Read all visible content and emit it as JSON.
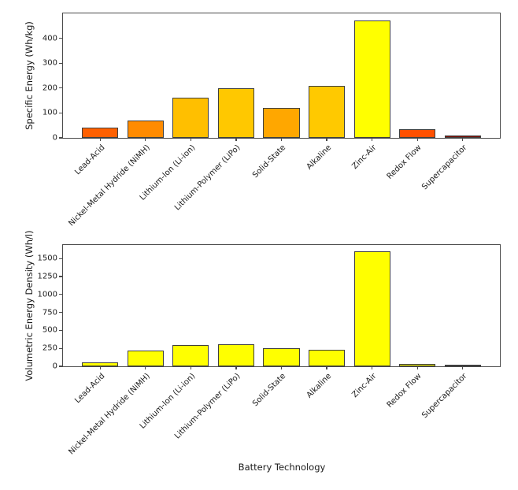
{
  "figure": {
    "xlabel": "Battery Technology"
  },
  "chart_data": [
    {
      "type": "bar",
      "title": "",
      "ylabel": "Specific Energy (Wh/kg)",
      "xlabel": "",
      "categories": [
        "Lead-Acid",
        "Nickel-Metal Hydride (NiMH)",
        "Lithium-Ion (Li-ion)",
        "Lithium-Polymer (LiPo)",
        "Solid-State",
        "Alkaline",
        "Zinc-Air",
        "Redox Flow",
        "Supercapacitor"
      ],
      "values": [
        40,
        70,
        160,
        200,
        120,
        210,
        470,
        35,
        8
      ],
      "bar_colors": [
        "#ff6000",
        "#ff8b00",
        "#ffbf00",
        "#ffc800",
        "#ffa700",
        "#ffc900",
        "#ffff00",
        "#ff5000",
        "#7d1007"
      ],
      "bar_edge_color": "#3f3f3f",
      "ylim": [
        0,
        500
      ],
      "yticks": [
        0,
        100,
        200,
        300,
        400
      ],
      "grid": false,
      "legend": "none"
    },
    {
      "type": "bar",
      "title": "",
      "ylabel": "Volumetric Energy Density (Wh/l)",
      "xlabel": "Battery Technology",
      "categories": [
        "Lead-Acid",
        "Nickel-Metal Hydride (NiMH)",
        "Lithium-Ion (Li-ion)",
        "Lithium-Polymer (LiPo)",
        "Solid-State",
        "Alkaline",
        "Zinc-Air",
        "Redox Flow",
        "Supercapacitor"
      ],
      "values": [
        60,
        220,
        300,
        305,
        250,
        230,
        1600,
        30,
        10
      ],
      "bar_colors": [
        "#ffff00",
        "#ffff00",
        "#ffff00",
        "#ffff00",
        "#ffff00",
        "#ffff00",
        "#ffff00",
        "#ffff00",
        "#ffff00"
      ],
      "bar_edge_color": "#3f3f3f",
      "ylim": [
        0,
        1690
      ],
      "yticks": [
        0,
        250,
        500,
        750,
        1000,
        1250,
        1500
      ],
      "grid": false,
      "legend": "none"
    }
  ]
}
